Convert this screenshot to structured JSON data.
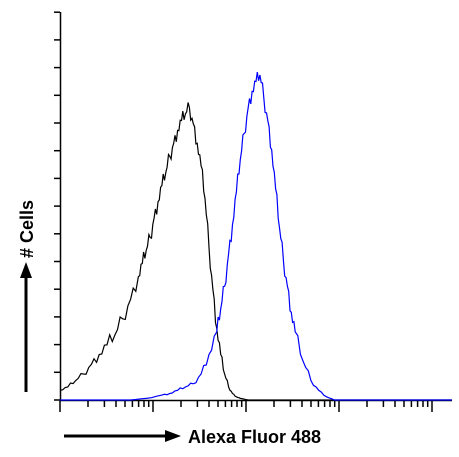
{
  "chart_data": {
    "type": "line",
    "title": "",
    "xlabel": "Alexa Fluor 488",
    "ylabel": "# Cells",
    "xlim": [
      0,
      100
    ],
    "ylim": [
      0,
      100
    ],
    "grid": false,
    "legend": "none",
    "series": [
      {
        "color": "#000000",
        "x": [
          0,
          2,
          4,
          6,
          8,
          10,
          12,
          14,
          16,
          18,
          20,
          21,
          22,
          23,
          24,
          25,
          26,
          27,
          28,
          29,
          30,
          31,
          32,
          33,
          34,
          35,
          36,
          37,
          38,
          39,
          40,
          41,
          42,
          43,
          44,
          45,
          46,
          48,
          50,
          55,
          60,
          100
        ],
        "y": [
          3,
          4,
          6,
          8,
          11,
          14,
          17,
          20,
          25,
          31,
          38,
          42,
          46,
          50,
          56,
          61,
          66,
          70,
          75,
          79,
          83,
          86,
          88,
          90,
          85,
          79,
          72,
          62,
          47,
          34,
          22,
          14,
          8,
          4,
          2,
          1,
          0.5,
          0,
          0,
          0,
          0,
          0
        ]
      },
      {
        "color": "#0000ff",
        "x": [
          0,
          10,
          18,
          22,
          26,
          28,
          30,
          32,
          34,
          36,
          38,
          40,
          41,
          42,
          43,
          44,
          45,
          46,
          47,
          48,
          49,
          50,
          51,
          52,
          53,
          54,
          55,
          56,
          57,
          58,
          59,
          60,
          62,
          64,
          66,
          68,
          70,
          100
        ],
        "y": [
          0,
          0,
          0,
          0.5,
          1.5,
          2,
          3,
          4,
          5,
          8,
          14,
          21,
          28,
          35,
          45,
          54,
          64,
          74,
          82,
          90,
          95,
          98,
          100,
          93,
          86,
          77,
          65,
          53,
          43,
          35,
          27,
          21,
          12,
          6,
          3,
          1,
          0,
          0
        ]
      }
    ]
  }
}
